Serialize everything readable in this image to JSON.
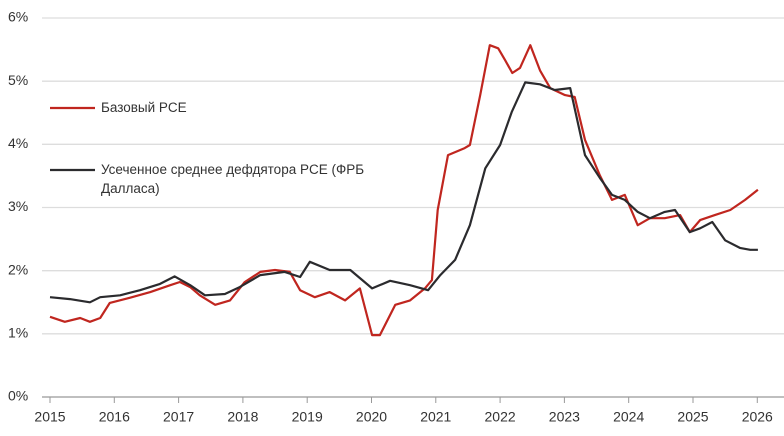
{
  "chart_data": {
    "type": "line",
    "series": [
      {
        "name": "Базовый PCE",
        "color": "#c0261f",
        "x": [
          2015.0,
          2015.23,
          2015.47,
          2015.62,
          2015.78,
          2015.93,
          2016.24,
          2016.56,
          2016.87,
          2017.02,
          2017.18,
          2017.33,
          2017.57,
          2017.8,
          2018.03,
          2018.27,
          2018.5,
          2018.73,
          2018.89,
          2019.12,
          2019.35,
          2019.59,
          2019.82,
          2020.01,
          2020.13,
          2020.37,
          2020.6,
          2020.83,
          2020.94,
          2021.03,
          2021.19,
          2021.45,
          2021.53,
          2021.69,
          2021.84,
          2021.97,
          2022.08,
          2022.19,
          2022.31,
          2022.47,
          2022.62,
          2022.78,
          2023.01,
          2023.16,
          2023.32,
          2023.55,
          2023.74,
          2023.94,
          2024.14,
          2024.33,
          2024.56,
          2024.8,
          2024.95,
          2025.11,
          2025.34,
          2025.58,
          2025.81,
          2026.01
        ],
        "values": [
          1.27,
          1.19,
          1.25,
          1.19,
          1.25,
          1.49,
          1.57,
          1.66,
          1.77,
          1.82,
          1.74,
          1.61,
          1.46,
          1.53,
          1.82,
          1.98,
          2.01,
          1.98,
          1.69,
          1.58,
          1.66,
          1.53,
          1.72,
          0.98,
          0.98,
          1.46,
          1.53,
          1.72,
          1.85,
          2.96,
          3.83,
          3.94,
          3.99,
          4.78,
          5.57,
          5.52,
          5.33,
          5.13,
          5.21,
          5.57,
          5.17,
          4.89,
          4.78,
          4.75,
          4.07,
          3.51,
          3.12,
          3.2,
          2.72,
          2.83,
          2.83,
          2.88,
          2.61,
          2.8,
          2.88,
          2.96,
          3.12,
          3.28
        ]
      },
      {
        "name": "Усеченное среднее дефдятора PCE (ФРБ Далласа)",
        "color": "#2b2b2e",
        "x": [
          2015.0,
          2015.31,
          2015.62,
          2015.78,
          2016.09,
          2016.4,
          2016.71,
          2016.94,
          2017.18,
          2017.41,
          2017.72,
          2017.95,
          2018.27,
          2018.65,
          2018.89,
          2019.04,
          2019.35,
          2019.67,
          2020.01,
          2020.29,
          2020.6,
          2020.88,
          2021.07,
          2021.3,
          2021.53,
          2021.77,
          2022.0,
          2022.18,
          2022.39,
          2022.62,
          2022.85,
          2023.09,
          2023.32,
          2023.55,
          2023.74,
          2023.94,
          2024.14,
          2024.33,
          2024.56,
          2024.72,
          2024.95,
          2025.11,
          2025.3,
          2025.5,
          2025.73,
          2025.89,
          2026.01
        ],
        "values": [
          1.58,
          1.55,
          1.5,
          1.58,
          1.61,
          1.69,
          1.79,
          1.91,
          1.77,
          1.61,
          1.63,
          1.74,
          1.93,
          1.98,
          1.9,
          2.14,
          2.01,
          2.01,
          1.72,
          1.84,
          1.77,
          1.69,
          1.93,
          2.17,
          2.72,
          3.62,
          3.99,
          4.51,
          4.98,
          4.95,
          4.86,
          4.89,
          3.83,
          3.47,
          3.2,
          3.12,
          2.93,
          2.83,
          2.93,
          2.96,
          2.61,
          2.67,
          2.77,
          2.48,
          2.36,
          2.33,
          2.33
        ]
      }
    ],
    "xlim": [
      2015,
      2026.05
    ],
    "xticks": [
      2015,
      2016,
      2017,
      2018,
      2019,
      2020,
      2021,
      2022,
      2023,
      2024,
      2025,
      2026
    ],
    "ylim": [
      0,
      6
    ],
    "yticks": [
      {
        "value": 0,
        "label": "0%"
      },
      {
        "value": 1,
        "label": "1%"
      },
      {
        "value": 2,
        "label": "2%"
      },
      {
        "value": 3,
        "label": "3%"
      },
      {
        "value": 4,
        "label": "4%"
      },
      {
        "value": 5,
        "label": "5%"
      },
      {
        "value": 6,
        "label": "6%"
      }
    ],
    "grid": true
  }
}
